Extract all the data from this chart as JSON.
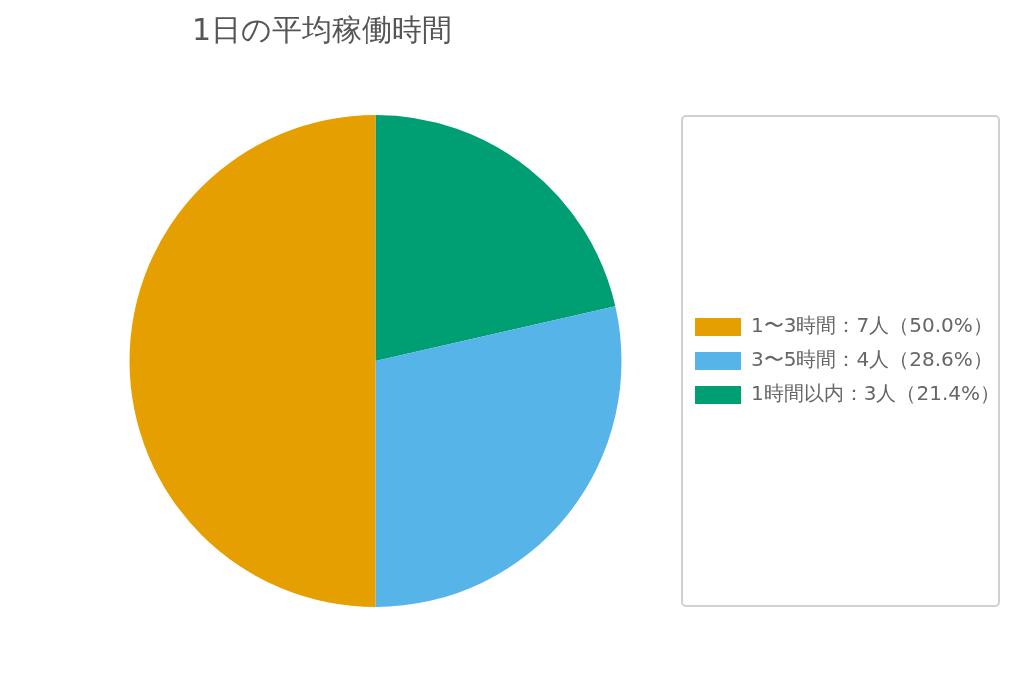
{
  "chart_data": {
    "type": "pie",
    "title": "1日の平均稼働時間",
    "categories": [
      "1〜3時間：7人（50.0%）",
      "3〜5時間：4人（28.6%）",
      "1時間以内：3人（21.4%）"
    ],
    "values": [
      7,
      4,
      3
    ],
    "colors": [
      "#e69f00",
      "#56b4e9",
      "#009e73"
    ],
    "legend": "right"
  }
}
